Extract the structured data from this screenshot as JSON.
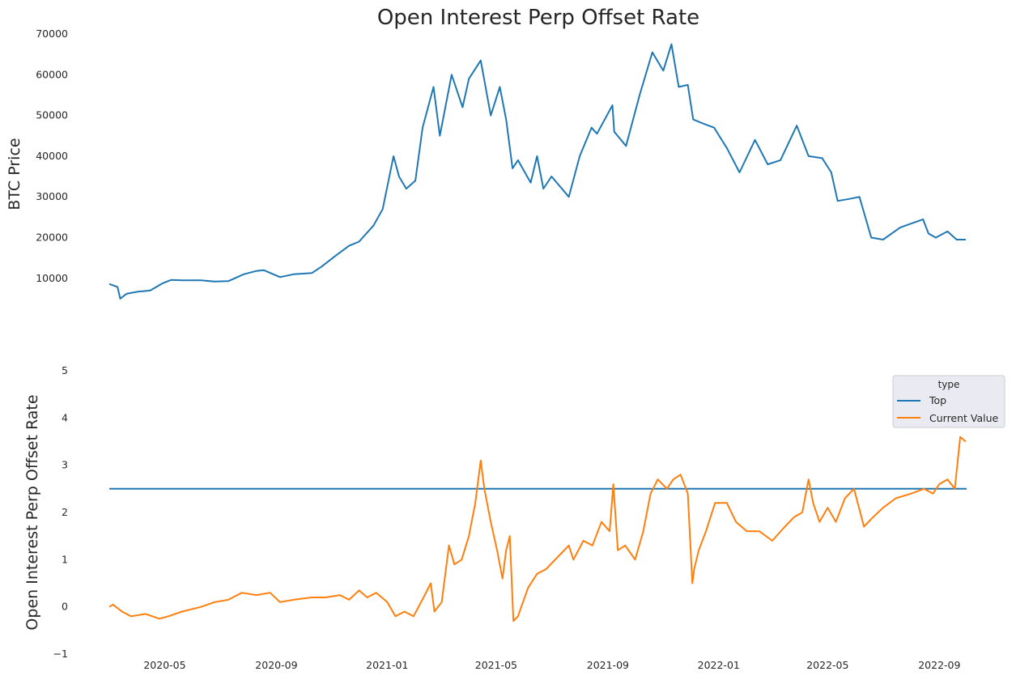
{
  "chart_data": [
    {
      "type": "line",
      "title": "Open Interest Perp Offset Rate",
      "ylabel": "BTC  Price",
      "xlabel": "",
      "ylim": [
        3000,
        70000
      ],
      "yticks": [
        10000,
        20000,
        30000,
        40000,
        50000,
        60000,
        70000
      ],
      "grid": false,
      "series": [
        {
          "name": "",
          "color": "#1f77b4",
          "x": [
            "2020-03-01",
            "2020-03-10",
            "2020-03-13",
            "2020-03-20",
            "2020-04-01",
            "2020-04-15",
            "2020-04-29",
            "2020-05-08",
            "2020-05-20",
            "2020-06-10",
            "2020-06-25",
            "2020-07-10",
            "2020-07-27",
            "2020-08-10",
            "2020-08-18",
            "2020-09-05",
            "2020-09-20",
            "2020-10-10",
            "2020-10-21",
            "2020-11-05",
            "2020-11-20",
            "2020-12-01",
            "2020-12-17",
            "2020-12-27",
            "2021-01-08",
            "2021-01-14",
            "2021-01-22",
            "2021-02-01",
            "2021-02-09",
            "2021-02-21",
            "2021-02-28",
            "2021-03-13",
            "2021-03-25",
            "2021-04-01",
            "2021-04-14",
            "2021-04-25",
            "2021-05-05",
            "2021-05-12",
            "2021-05-19",
            "2021-05-25",
            "2021-06-08",
            "2021-06-15",
            "2021-06-22",
            "2021-07-01",
            "2021-07-20",
            "2021-08-01",
            "2021-08-14",
            "2021-08-20",
            "2021-09-06",
            "2021-09-08",
            "2021-09-21",
            "2021-10-06",
            "2021-10-20",
            "2021-11-01",
            "2021-11-10",
            "2021-11-18",
            "2021-11-28",
            "2021-12-04",
            "2021-12-15",
            "2021-12-27",
            "2022-01-10",
            "2022-01-24",
            "2022-02-10",
            "2022-02-24",
            "2022-03-10",
            "2022-03-28",
            "2022-04-10",
            "2022-04-25",
            "2022-05-05",
            "2022-05-12",
            "2022-05-25",
            "2022-06-05",
            "2022-06-18",
            "2022-07-01",
            "2022-07-20",
            "2022-08-14",
            "2022-08-20",
            "2022-08-28",
            "2022-09-10",
            "2022-09-20",
            "2022-09-30"
          ],
          "values": [
            8600,
            7900,
            5000,
            6200,
            6700,
            7000,
            8800,
            9600,
            9500,
            9500,
            9200,
            9300,
            11000,
            11800,
            12000,
            10300,
            11000,
            11300,
            12900,
            15500,
            18000,
            19000,
            23000,
            27000,
            40000,
            35000,
            32000,
            34000,
            47000,
            57000,
            45000,
            60000,
            52000,
            59000,
            63500,
            50000,
            57000,
            49000,
            37000,
            39000,
            33500,
            40000,
            32000,
            35000,
            30000,
            40000,
            47000,
            45500,
            52500,
            46000,
            42500,
            55000,
            65500,
            61000,
            67500,
            57000,
            57500,
            49000,
            48000,
            47000,
            42000,
            36000,
            44000,
            38000,
            39000,
            47500,
            40000,
            39500,
            36000,
            29000,
            29500,
            30000,
            20000,
            19500,
            22500,
            24500,
            21000,
            20000,
            21500,
            19500,
            19500
          ]
        }
      ]
    },
    {
      "type": "line",
      "title": "",
      "ylabel": "Open Interest Perp Offset Rate",
      "xlabel": "",
      "ylim": [
        -1,
        5
      ],
      "yticks": [
        -1,
        0,
        1,
        2,
        3,
        4,
        5
      ],
      "xticks": [
        "2020-05",
        "2020-09",
        "2021-01",
        "2021-05",
        "2021-09",
        "2022-01",
        "2022-05",
        "2022-09"
      ],
      "grid": false,
      "legend": {
        "title": "type",
        "position": "right"
      },
      "series": [
        {
          "name": "Top",
          "color": "#1f77b4",
          "x": [
            "2020-03-01",
            "2022-10-01"
          ],
          "values": [
            2.5,
            2.5
          ]
        },
        {
          "name": "Current Value",
          "color": "#ff7f0e",
          "x": [
            "2020-03-01",
            "2020-03-05",
            "2020-03-15",
            "2020-03-25",
            "2020-04-10",
            "2020-04-25",
            "2020-05-05",
            "2020-05-20",
            "2020-06-10",
            "2020-06-25",
            "2020-07-10",
            "2020-07-25",
            "2020-08-10",
            "2020-08-25",
            "2020-09-05",
            "2020-09-20",
            "2020-10-10",
            "2020-10-25",
            "2020-11-10",
            "2020-11-20",
            "2020-12-01",
            "2020-12-10",
            "2020-12-20",
            "2021-01-01",
            "2021-01-10",
            "2021-01-20",
            "2021-01-30",
            "2021-02-10",
            "2021-02-18",
            "2021-02-22",
            "2021-03-02",
            "2021-03-10",
            "2021-03-16",
            "2021-03-24",
            "2021-04-01",
            "2021-04-08",
            "2021-04-14",
            "2021-04-18",
            "2021-04-25",
            "2021-05-02",
            "2021-05-08",
            "2021-05-12",
            "2021-05-16",
            "2021-05-20",
            "2021-05-25",
            "2021-06-05",
            "2021-06-15",
            "2021-06-25",
            "2021-07-10",
            "2021-07-20",
            "2021-07-25",
            "2021-08-05",
            "2021-08-15",
            "2021-08-25",
            "2021-09-03",
            "2021-09-07",
            "2021-09-12",
            "2021-09-20",
            "2021-10-01",
            "2021-10-10",
            "2021-10-18",
            "2021-10-26",
            "2021-11-05",
            "2021-11-12",
            "2021-11-20",
            "2021-11-28",
            "2021-12-03",
            "2021-12-05",
            "2021-12-10",
            "2021-12-18",
            "2021-12-28",
            "2022-01-10",
            "2022-01-20",
            "2022-02-01",
            "2022-02-15",
            "2022-03-01",
            "2022-03-15",
            "2022-03-25",
            "2022-04-03",
            "2022-04-10",
            "2022-04-15",
            "2022-04-22",
            "2022-05-01",
            "2022-05-10",
            "2022-05-20",
            "2022-05-30",
            "2022-06-10",
            "2022-06-20",
            "2022-07-01",
            "2022-07-15",
            "2022-08-01",
            "2022-08-15",
            "2022-08-25",
            "2022-09-01",
            "2022-09-10",
            "2022-09-18",
            "2022-09-24",
            "2022-09-30"
          ],
          "values": [
            0.0,
            0.05,
            -0.1,
            -0.2,
            -0.15,
            -0.25,
            -0.2,
            -0.1,
            0.0,
            0.1,
            0.15,
            0.3,
            0.25,
            0.3,
            0.1,
            0.15,
            0.2,
            0.2,
            0.25,
            0.15,
            0.35,
            0.2,
            0.3,
            0.1,
            -0.2,
            -0.1,
            -0.2,
            0.2,
            0.5,
            -0.1,
            0.1,
            1.3,
            0.9,
            1.0,
            1.5,
            2.2,
            3.1,
            2.5,
            1.8,
            1.2,
            0.6,
            1.2,
            1.5,
            -0.3,
            -0.2,
            0.4,
            0.7,
            0.8,
            1.1,
            1.3,
            1.0,
            1.4,
            1.3,
            1.8,
            1.6,
            2.6,
            1.2,
            1.3,
            1.0,
            1.6,
            2.4,
            2.7,
            2.5,
            2.7,
            2.8,
            2.4,
            0.5,
            0.8,
            1.2,
            1.6,
            2.2,
            2.2,
            1.8,
            1.6,
            1.6,
            1.4,
            1.7,
            1.9,
            2.0,
            2.7,
            2.2,
            1.8,
            2.1,
            1.8,
            2.3,
            2.5,
            1.7,
            1.9,
            2.1,
            2.3,
            2.4,
            2.5,
            2.4,
            2.6,
            2.7,
            2.5,
            3.6,
            3.5
          ]
        }
      ]
    }
  ]
}
